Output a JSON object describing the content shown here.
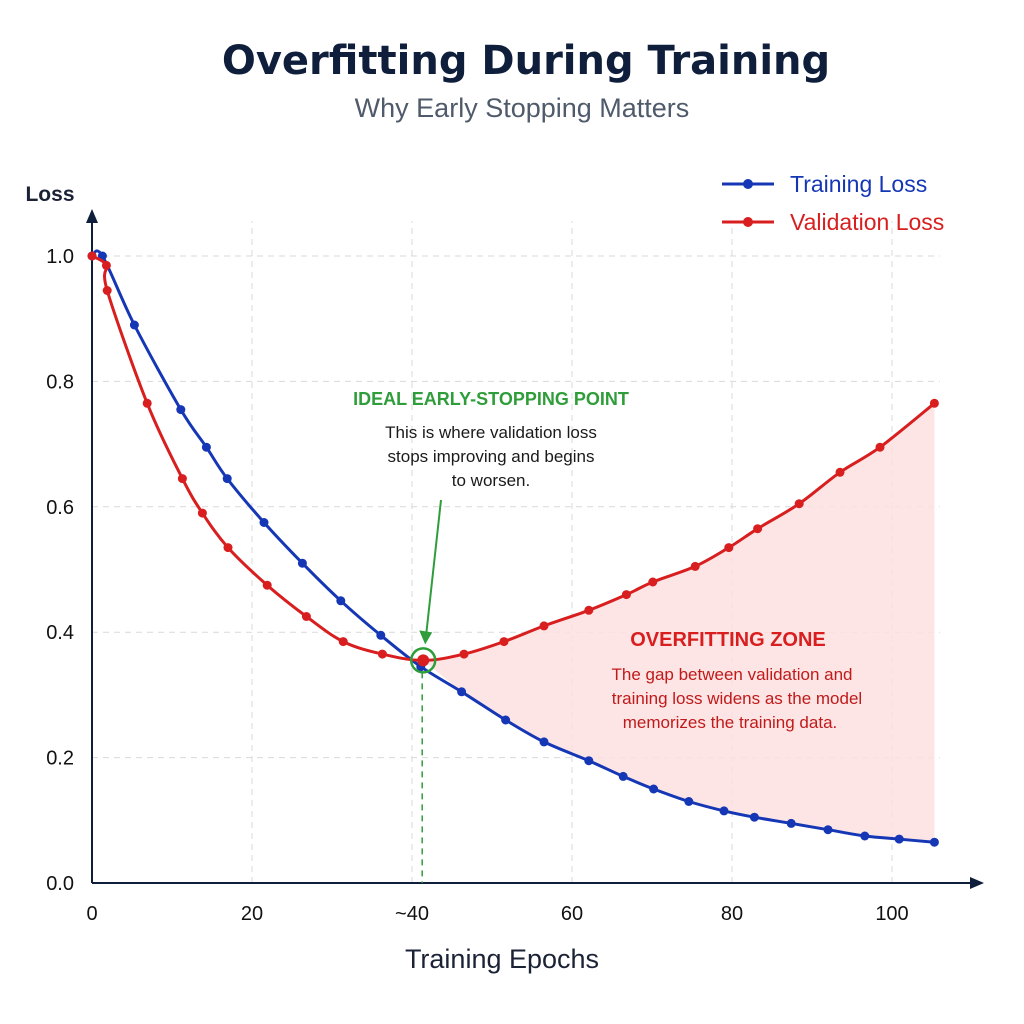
{
  "chart_data": {
    "type": "line",
    "title": "Overfitting During Training",
    "subtitle": "Why Early Stopping Matters",
    "xlabel": "Training Epochs",
    "ylabel": "Loss",
    "xlim": [
      0,
      105
    ],
    "ylim": [
      0,
      1.0
    ],
    "x_ticks": [
      "0",
      "20",
      "~40",
      "60",
      "80",
      "100"
    ],
    "x_tick_values": [
      0,
      20,
      40,
      60,
      80,
      100
    ],
    "y_ticks": [
      "0.0",
      "0.2",
      "0.4",
      "0.6",
      "0.8",
      "1.0"
    ],
    "y_tick_values": [
      0,
      0.2,
      0.4,
      0.6,
      0.8,
      1.0
    ],
    "grid": true,
    "legend_position": "top-right",
    "series": [
      {
        "name": "Training Loss",
        "color": "#1537b5",
        "x": [
          0,
          1.3,
          5.3,
          11.1,
          14.3,
          16.9,
          21.5,
          26.3,
          31.1,
          36.1,
          41.1,
          46.2,
          51.7,
          56.5,
          62.1,
          66.4,
          70.2,
          74.6,
          79.0,
          82.8,
          87.4,
          92.0,
          96.6,
          100.9,
          105.3
        ],
        "values": [
          1.0,
          1.0,
          0.89,
          0.755,
          0.695,
          0.645,
          0.575,
          0.51,
          0.45,
          0.395,
          0.345,
          0.305,
          0.26,
          0.225,
          0.195,
          0.17,
          0.15,
          0.13,
          0.115,
          0.105,
          0.095,
          0.085,
          0.075,
          0.07,
          0.065
        ]
      },
      {
        "name": "Validation Loss",
        "color": "#d81e1e",
        "x": [
          0,
          1.8,
          1.9,
          6.9,
          11.3,
          13.8,
          17.0,
          21.9,
          26.8,
          31.4,
          36.3,
          41.4,
          46.5,
          51.5,
          56.5,
          62.1,
          66.8,
          70.1,
          75.4,
          79.6,
          83.2,
          88.4,
          93.5,
          98.5,
          105.3
        ],
        "values": [
          1.0,
          0.985,
          0.945,
          0.765,
          0.645,
          0.59,
          0.535,
          0.475,
          0.425,
          0.385,
          0.365,
          0.355,
          0.365,
          0.385,
          0.41,
          0.435,
          0.46,
          0.48,
          0.505,
          0.535,
          0.565,
          0.605,
          0.655,
          0.695,
          0.765
        ]
      }
    ],
    "annotations": {
      "early_stop": {
        "title": "IDEAL EARLY-STOPPING POINT",
        "lines": [
          "This is where validation loss",
          "stops improving and begins",
          "to worsen."
        ],
        "x": 41.4,
        "y": 0.355,
        "color": "#2f9e3a"
      },
      "overfit": {
        "title": "OVERFITTING ZONE",
        "lines": [
          "The gap between validation and",
          "training loss widens as the model",
          "memorizes the training data."
        ],
        "color": "#d81e1e",
        "fill": "#fde1e1"
      }
    }
  }
}
